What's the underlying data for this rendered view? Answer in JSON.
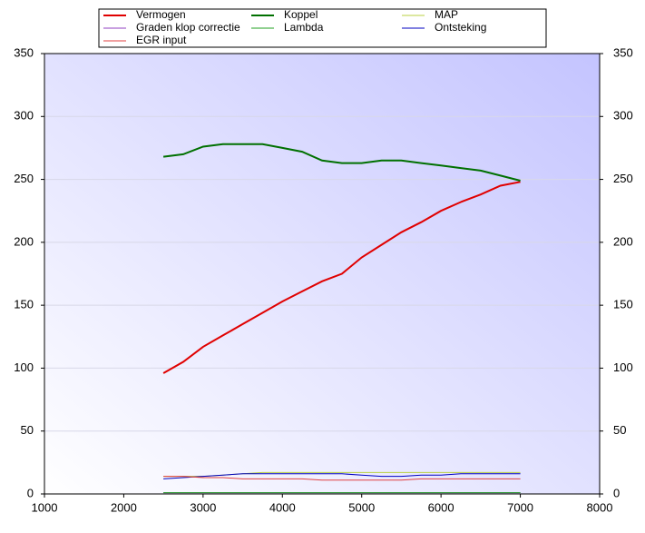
{
  "chart_data": {
    "type": "line",
    "x": [
      2500,
      2750,
      3000,
      3250,
      3500,
      3750,
      4000,
      4250,
      4500,
      4750,
      5000,
      5250,
      5500,
      5750,
      6000,
      6250,
      6500,
      6750,
      7000
    ],
    "series": [
      {
        "name": "Vermogen",
        "color": "#e00000",
        "width": 2,
        "values": [
          96,
          105,
          117,
          126,
          135,
          144,
          153,
          161,
          169,
          175,
          188,
          198,
          208,
          216,
          225,
          232,
          238,
          245,
          248
        ]
      },
      {
        "name": "Koppel",
        "color": "#007000",
        "width": 2,
        "values": [
          268,
          270,
          276,
          278,
          278,
          278,
          275,
          272,
          265,
          263,
          263,
          265,
          265,
          263,
          261,
          259,
          257,
          253,
          249
        ]
      },
      {
        "name": "MAP",
        "color": "#b8d040",
        "width": 1,
        "values": [
          14,
          14,
          14,
          15,
          16,
          17,
          17,
          17,
          17,
          17,
          17,
          17,
          17,
          17,
          17,
          17,
          17,
          17,
          17
        ]
      },
      {
        "name": "Graden klop correctie",
        "color": "#9040c0",
        "width": 1,
        "values": [
          1,
          1,
          1,
          1,
          1,
          1,
          1,
          1,
          1,
          1,
          1,
          1,
          1,
          1,
          1,
          1,
          1,
          1,
          1
        ]
      },
      {
        "name": "Lambda",
        "color": "#20a020",
        "width": 1,
        "values": [
          1,
          1,
          1,
          1,
          1,
          1,
          1,
          1,
          1,
          1,
          1,
          1,
          1,
          1,
          1,
          1,
          1,
          1,
          1
        ]
      },
      {
        "name": "Ontsteking",
        "color": "#0000c0",
        "width": 1,
        "values": [
          12,
          13,
          14,
          15,
          16,
          16,
          16,
          16,
          16,
          16,
          15,
          14,
          14,
          15,
          15,
          16,
          16,
          16,
          16
        ]
      },
      {
        "name": "EGR input",
        "color": "#e04040",
        "width": 1,
        "values": [
          14,
          14,
          13,
          13,
          12,
          12,
          12,
          12,
          11,
          11,
          11,
          11,
          11,
          12,
          12,
          12,
          12,
          12,
          12
        ]
      }
    ],
    "xlim": [
      1000,
      8000
    ],
    "xticks": [
      1000,
      2000,
      3000,
      4000,
      5000,
      6000,
      7000,
      8000
    ],
    "ylim": [
      0,
      350
    ],
    "yticks": [
      0,
      50,
      100,
      150,
      200,
      250,
      300,
      350
    ],
    "y2lim": [
      0,
      350
    ],
    "y2ticks": [
      0,
      50,
      100,
      150,
      200,
      250,
      300,
      350
    ],
    "grid": true
  }
}
